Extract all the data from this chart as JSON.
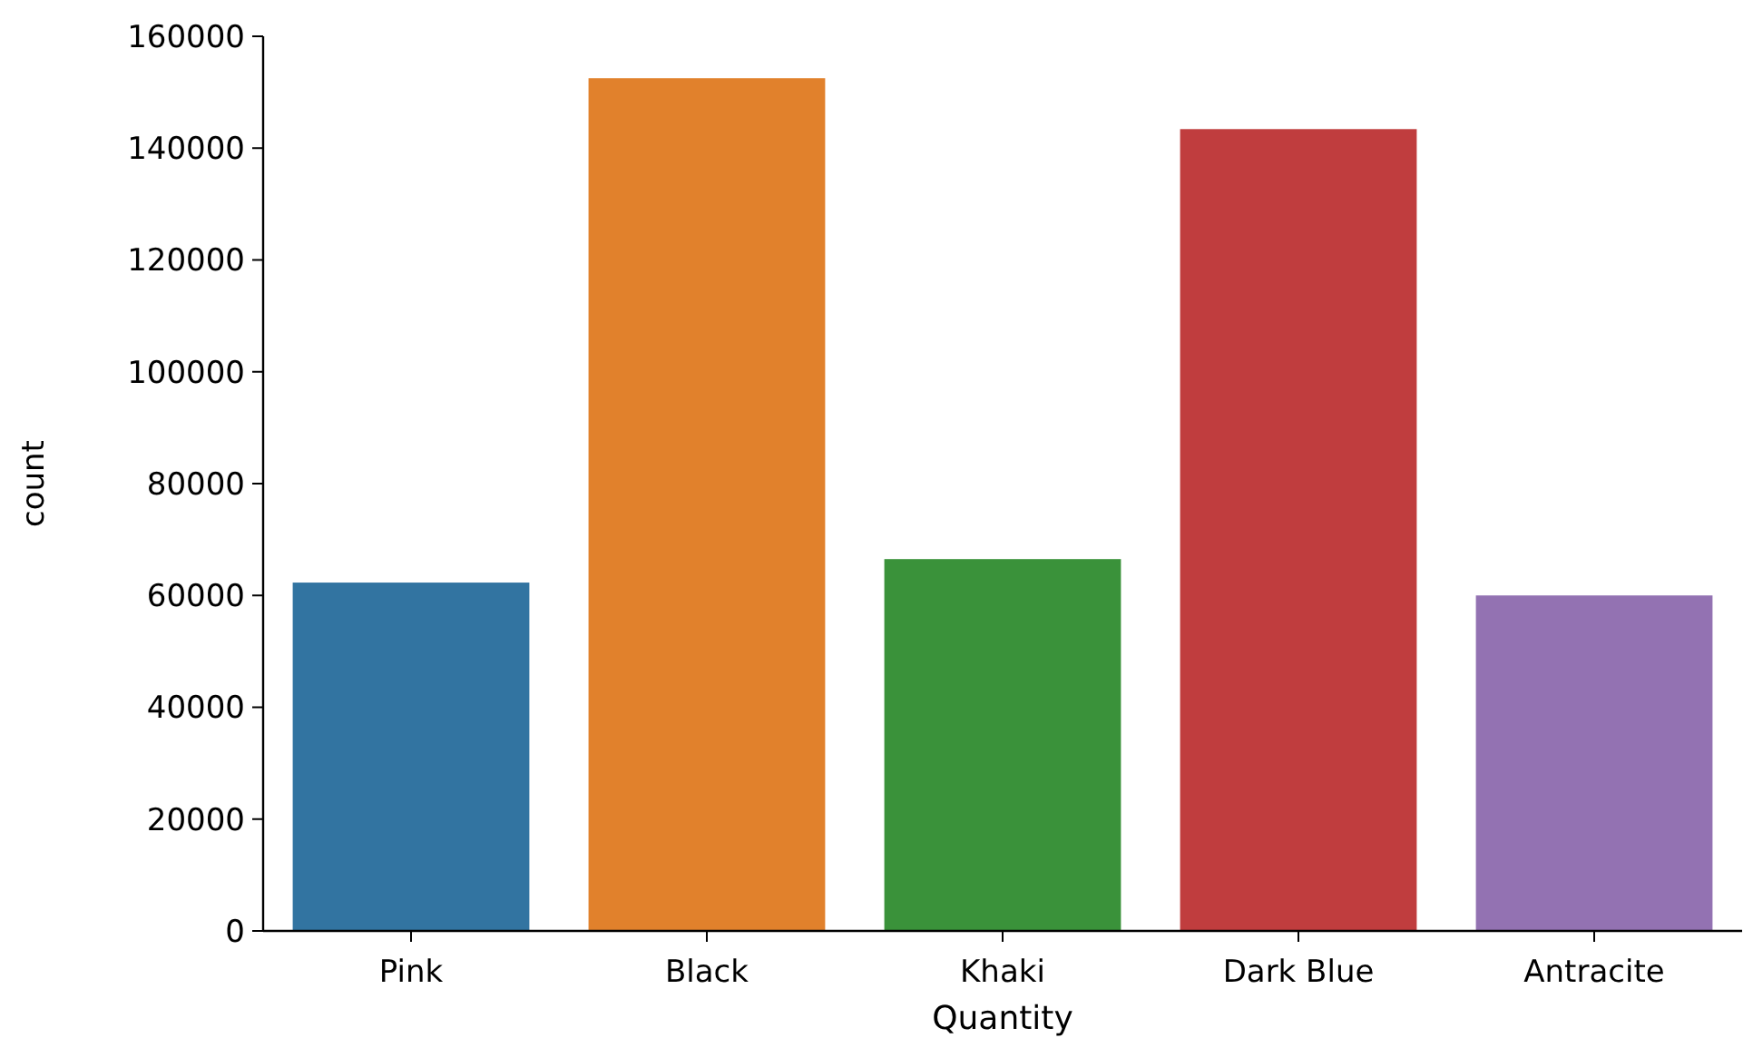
{
  "chart_data": {
    "type": "bar",
    "xlabel": "Quantity",
    "ylabel": "count",
    "categories": [
      "Pink",
      "Black",
      "Khaki",
      "Dark Blue",
      "Antracite"
    ],
    "values": [
      62300,
      152500,
      66500,
      143400,
      60000
    ],
    "colors": [
      "#3274a1",
      "#e1812c",
      "#3a923a",
      "#c03d3e",
      "#9372b2"
    ],
    "ylim": [
      0,
      160000
    ],
    "yticks": [
      0,
      20000,
      40000,
      60000,
      80000,
      100000,
      120000,
      140000,
      160000
    ],
    "grid": false
  }
}
